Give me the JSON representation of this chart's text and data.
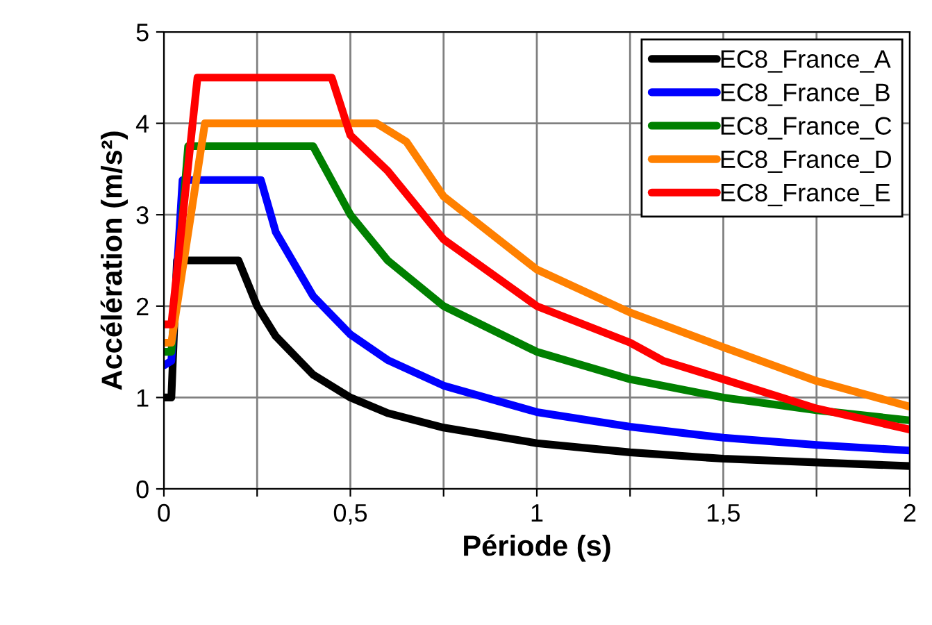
{
  "chart_data": {
    "type": "line",
    "xlabel": "Période (s)",
    "ylabel": "Accélération (m/s²)",
    "xlim": [
      0,
      2
    ],
    "ylim": [
      0,
      5
    ],
    "xticks": [
      {
        "value": 0,
        "label": "0"
      },
      {
        "value": 0.25,
        "label": null
      },
      {
        "value": 0.5,
        "label": "0,5"
      },
      {
        "value": 0.75,
        "label": null
      },
      {
        "value": 1,
        "label": "1"
      },
      {
        "value": 1.25,
        "label": null
      },
      {
        "value": 1.5,
        "label": "1,5"
      },
      {
        "value": 1.75,
        "label": null
      },
      {
        "value": 2,
        "label": "2"
      }
    ],
    "yticks": [
      0,
      1,
      2,
      3,
      4,
      5
    ],
    "grid": true,
    "legend": "top right",
    "line_style": "solid",
    "marker": "none",
    "series": [
      {
        "name": "EC8_France_A",
        "color": "#000000",
        "x": [
          0,
          0.02,
          0.035,
          0.2,
          0.25,
          0.3,
          0.4,
          0.5,
          0.6,
          0.75,
          1,
          1.25,
          1.5,
          1.75,
          2
        ],
        "values": [
          1,
          1,
          2.5,
          2.5,
          2,
          1.67,
          1.25,
          1,
          0.83,
          0.67,
          0.5,
          0.4,
          0.33,
          0.29,
          0.25
        ]
      },
      {
        "name": "EC8_France_B",
        "color": "#0000ff",
        "x": [
          0,
          0.02,
          0.05,
          0.26,
          0.3,
          0.4,
          0.5,
          0.6,
          0.75,
          1,
          1.25,
          1.5,
          1.75,
          2
        ],
        "values": [
          1.35,
          1.4,
          3.38,
          3.38,
          2.81,
          2.11,
          1.69,
          1.41,
          1.13,
          0.84,
          0.68,
          0.56,
          0.48,
          0.42
        ]
      },
      {
        "name": "EC8_France_C",
        "color": "#008000",
        "x": [
          0,
          0.02,
          0.065,
          0.4,
          0.5,
          0.6,
          0.75,
          1,
          1.25,
          1.5,
          1.75,
          2
        ],
        "values": [
          1.5,
          1.5,
          3.75,
          3.75,
          3,
          2.5,
          2,
          1.5,
          1.2,
          1,
          0.86,
          0.75
        ]
      },
      {
        "name": "EC8_France_D",
        "color": "#ff8000",
        "x": [
          0,
          0.02,
          0.11,
          0.57,
          0.65,
          0.75,
          1,
          1.25,
          1.5,
          1.75,
          2
        ],
        "values": [
          1.6,
          1.6,
          4,
          4,
          3.8,
          3.2,
          2.4,
          1.93,
          1.55,
          1.18,
          0.9
        ]
      },
      {
        "name": "EC8_France_E",
        "color": "#ff0000",
        "x": [
          0,
          0.02,
          0.09,
          0.45,
          0.5,
          0.6,
          0.75,
          1,
          1.25,
          1.34,
          1.5,
          1.75,
          2
        ],
        "values": [
          1.8,
          1.8,
          4.5,
          4.5,
          3.87,
          3.48,
          2.73,
          2,
          1.6,
          1.4,
          1.2,
          0.88,
          0.65
        ]
      }
    ]
  }
}
